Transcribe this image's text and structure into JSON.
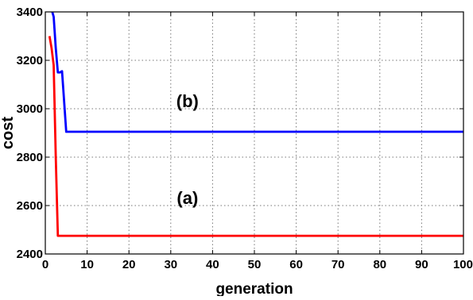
{
  "chart_data": {
    "type": "line",
    "title": "",
    "xlabel": "generation",
    "ylabel": "cost",
    "xlim": [
      0,
      100
    ],
    "ylim": [
      2400,
      3400
    ],
    "xticks": [
      0,
      10,
      20,
      30,
      40,
      50,
      60,
      70,
      80,
      90,
      100
    ],
    "yticks": [
      2400,
      2600,
      2800,
      3000,
      3200,
      3400
    ],
    "grid": true,
    "legend": "none",
    "series": [
      {
        "name": "(b)",
        "color": "#0000ff",
        "x": [
          1,
          1.5,
          2,
          2.5,
          3,
          3.5,
          4,
          5,
          10,
          20,
          50,
          100
        ],
        "y": [
          3450,
          3410,
          3380,
          3250,
          3150,
          3150,
          3155,
          2905,
          2905,
          2905,
          2905,
          2905
        ]
      },
      {
        "name": "(a)",
        "color": "#ff0000",
        "x": [
          1,
          1.5,
          2,
          2.5,
          3,
          4,
          10,
          20,
          50,
          100
        ],
        "y": [
          3300,
          3250,
          3180,
          2800,
          2475,
          2475,
          2475,
          2475,
          2475,
          2475
        ]
      }
    ],
    "annotations": [
      {
        "text": "(b)",
        "x": 34,
        "y": 3000
      },
      {
        "text": "(a)",
        "x": 34,
        "y": 2600
      }
    ]
  }
}
